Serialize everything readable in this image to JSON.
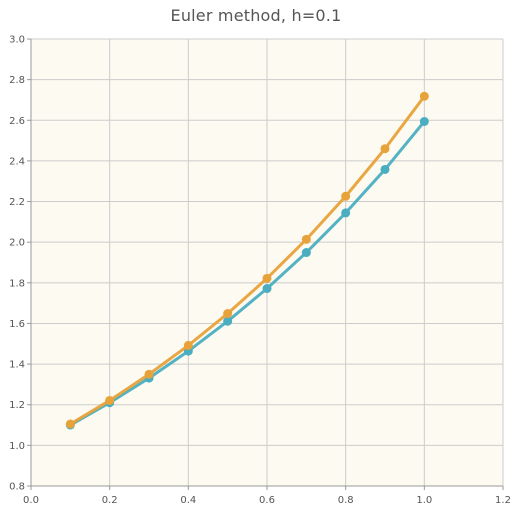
{
  "chart_data": {
    "type": "line",
    "title": "Euler method, h=0.1",
    "xlabel": "",
    "ylabel": "",
    "xlim": [
      0.0,
      1.2
    ],
    "ylim": [
      0.8,
      3.0
    ],
    "x_ticks": [
      "0.0",
      "0.2",
      "0.4",
      "0.6",
      "0.8",
      "1.0",
      "1.2"
    ],
    "y_ticks": [
      "0.8",
      "1.0",
      "1.2",
      "1.4",
      "1.6",
      "1.8",
      "2.0",
      "2.2",
      "2.4",
      "2.6",
      "2.8",
      "3.0"
    ],
    "x_tick_values": [
      0.0,
      0.2,
      0.4,
      0.6,
      0.8,
      1.0,
      1.2
    ],
    "y_tick_values": [
      0.8,
      1.0,
      1.2,
      1.4,
      1.6,
      1.8,
      2.0,
      2.2,
      2.4,
      2.6,
      2.8,
      3.0
    ],
    "grid": true,
    "legend": "none",
    "series": [
      {
        "color": "#e8a23a",
        "x": [
          0.1,
          0.2,
          0.3,
          0.4,
          0.5,
          0.6,
          0.7,
          0.8,
          0.9,
          1.0
        ],
        "y": [
          1.105,
          1.221,
          1.35,
          1.492,
          1.649,
          1.822,
          2.014,
          2.226,
          2.46,
          2.718
        ]
      },
      {
        "color": "#4aaec0",
        "x": [
          0.1,
          0.2,
          0.3,
          0.4,
          0.5,
          0.6,
          0.7,
          0.8,
          0.9,
          1.0
        ],
        "y": [
          1.1,
          1.21,
          1.331,
          1.464,
          1.611,
          1.772,
          1.949,
          2.144,
          2.358,
          2.594
        ]
      }
    ],
    "colors": {
      "plot_background": "#fdfaf1",
      "grid": "#cccccc",
      "axis": "#999999",
      "text": "#555555"
    }
  }
}
